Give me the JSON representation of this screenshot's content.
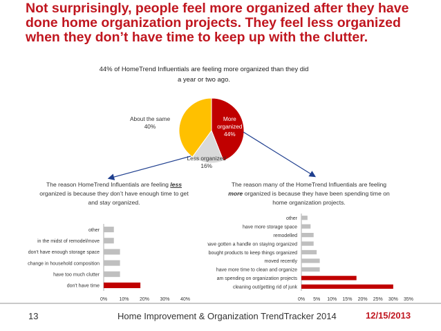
{
  "headline": "Not surprisingly, people feel more organized after they have done home organization projects.  They feel less organized when they don’t have time to keep up with the clutter.",
  "footer": {
    "slide_number": "13",
    "title": "Home Improvement & Organization TrendTracker 2014",
    "date": "12/15/2013"
  },
  "notes": {
    "left": {
      "pre": "The reason HomeTrend Influentials are feeling ",
      "em": "less",
      "post": " organized is because they don’t have enough time to get and stay organized."
    },
    "right": {
      "pre": "The reason many of the HomeTrend Influentials are feeling ",
      "em": "more",
      "post": " organized is because they have been spending time on home organization projects."
    }
  },
  "colors": {
    "accent": "#c0161f",
    "gray_bar": "#bfbfbf",
    "pie_more": "#c00000",
    "pie_same": "#ffc000",
    "pie_less": "#d9d9d9",
    "arrow": "#1f3f8f"
  },
  "chart_data": [
    {
      "type": "pie",
      "title": "44% of HomeTrend Influentials are feeling more organized than they did a year or two ago.",
      "slices": [
        {
          "label": "More organized",
          "value": 44,
          "value_label": "44%"
        },
        {
          "label": "Less organized",
          "value": 16,
          "value_label": "16%"
        },
        {
          "label": "About the same",
          "value": 40,
          "value_label": "40%"
        }
      ]
    },
    {
      "type": "bar",
      "orientation": "horizontal",
      "categories": [
        "other",
        "in the midst of remodel/move",
        "don't have enough storage space",
        "change in household composition",
        "have too much clutter",
        "don't have time"
      ],
      "values": [
        5,
        5,
        8,
        8,
        8,
        18
      ],
      "highlight": [
        false,
        false,
        false,
        false,
        false,
        true
      ],
      "xlim": [
        0,
        40
      ],
      "xticks": [
        "0%",
        "10%",
        "20%",
        "30%",
        "40%"
      ]
    },
    {
      "type": "bar",
      "orientation": "horizontal",
      "categories": [
        "other",
        "have more storage space",
        "remodelled",
        "have gotten a handle on staying organized",
        "bought products to keep things organized",
        "moved recently",
        "have more time to clean and organize",
        "am spending on organization projects",
        "cleaning out/getting rid of junk"
      ],
      "values": [
        2,
        3,
        4,
        4,
        5,
        6,
        6,
        18,
        30
      ],
      "highlight": [
        false,
        false,
        false,
        false,
        false,
        false,
        false,
        true,
        true
      ],
      "xlim": [
        0,
        35
      ],
      "xticks": [
        "0%",
        "5%",
        "10%",
        "15%",
        "20%",
        "25%",
        "30%",
        "35%"
      ]
    }
  ]
}
